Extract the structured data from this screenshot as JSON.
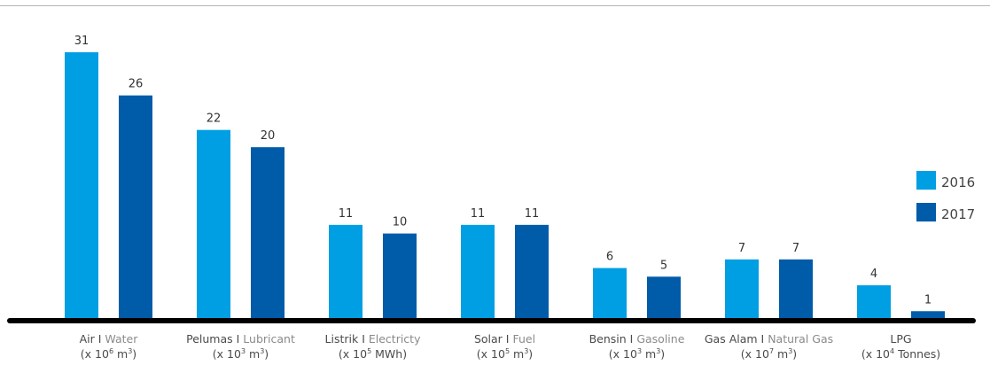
{
  "chart_data": {
    "type": "bar",
    "categories": [
      {
        "id": "Air I Water",
        "name": "Air",
        "sep": "I",
        "en": "Water",
        "unit_pre": "(x 10",
        "unit_exp": "6",
        "unit_mid": " m",
        "unit_exp2": "3",
        "unit_post": ")"
      },
      {
        "id": "Pelumas I Lubricant",
        "name": "Pelumas",
        "sep": "I",
        "en": "Lubricant",
        "unit_pre": "(x 10",
        "unit_exp": "3",
        "unit_mid": " m",
        "unit_exp2": "3",
        "unit_post": ")"
      },
      {
        "id": "Listrik I Electricty",
        "name": "Listrik",
        "sep": "I",
        "en": "Electricty",
        "unit_pre": "(x 10",
        "unit_exp": "5",
        "unit_mid": " MWh)",
        "unit_exp2": "",
        "unit_post": ""
      },
      {
        "id": "Solar I Fuel",
        "name": "Solar",
        "sep": "I",
        "en": "Fuel",
        "unit_pre": "(x 10",
        "unit_exp": "5",
        "unit_mid": " m",
        "unit_exp2": "3",
        "unit_post": ")"
      },
      {
        "id": "Bensin I Gasoline",
        "name": "Bensin",
        "sep": "I",
        "en": "Gasoline",
        "unit_pre": "(x 10",
        "unit_exp": "3",
        "unit_mid": " m",
        "unit_exp2": "3",
        "unit_post": ")"
      },
      {
        "id": "Gas Alam I Natural Gas",
        "name": "Gas Alam",
        "sep": "I",
        "en": "Natural Gas",
        "unit_pre": "(x 10",
        "unit_exp": "7",
        "unit_mid": " m",
        "unit_exp2": "3",
        "unit_post": ")"
      },
      {
        "id": "LPG",
        "name": "LPG",
        "sep": "",
        "en": "",
        "unit_pre": "(x 10",
        "unit_exp": "4",
        "unit_mid": " Tonnes)",
        "unit_exp2": "",
        "unit_post": ""
      }
    ],
    "series": [
      {
        "name": "2016",
        "color": "#009ee3",
        "values": [
          31,
          22,
          11,
          11,
          6,
          7,
          4
        ]
      },
      {
        "name": "2017",
        "color": "#005ba8",
        "values": [
          26,
          20,
          10,
          11,
          5,
          7,
          1
        ]
      }
    ],
    "ylim": [
      0,
      31
    ],
    "legend_position": "right",
    "grid": false,
    "baseline_color": "#000000"
  }
}
